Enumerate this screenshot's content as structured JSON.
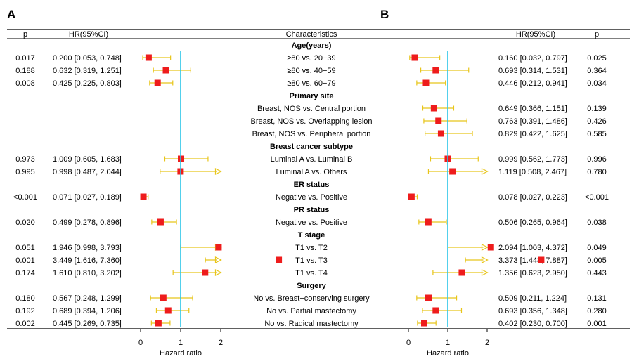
{
  "panels": {
    "a": "A",
    "b": "B"
  },
  "header": {
    "p": "p",
    "hr": "HR(95%CI)",
    "characteristics": "Characteristics"
  },
  "axis": {
    "ticks": [
      0,
      1,
      2
    ],
    "label": "Hazard ratio",
    "xlim": [
      0,
      2
    ]
  },
  "colors": {
    "marker": "#ee1c1c",
    "ci": "#e8c51a",
    "reference": "#27c4e8"
  },
  "chart_data": [
    {
      "type": "forest",
      "panel": "A",
      "xlabel": "Hazard ratio",
      "xlim": [
        0,
        2
      ],
      "reference_line": 1,
      "groups": [
        {
          "title": "Age(years)",
          "rows": [
            {
              "label": "≥80 vs. 20−39",
              "hr": 0.2,
              "lo": 0.053,
              "hi": 0.748,
              "text": "0.200 [0.053, 0.748]",
              "p": "0.017"
            },
            {
              "label": "≥80 vs. 40−59",
              "hr": 0.632,
              "lo": 0.319,
              "hi": 1.251,
              "text": "0.632 [0.319, 1.251]",
              "p": "0.188"
            },
            {
              "label": "≥80 vs. 60−79",
              "hr": 0.425,
              "lo": 0.225,
              "hi": 0.803,
              "text": "0.425 [0.225, 0.803]",
              "p": "0.008"
            }
          ]
        },
        {
          "title": "Primary site",
          "rows": [
            {
              "label": "Breast, NOS vs. Central portion"
            },
            {
              "label": "Breast, NOS vs. Overlapping lesion"
            },
            {
              "label": "Breast, NOS vs. Peripheral portion"
            }
          ]
        },
        {
          "title": "Breast cancer subtype",
          "rows": [
            {
              "label": "Luminal A vs. Luminal B",
              "hr": 1.009,
              "lo": 0.605,
              "hi": 1.683,
              "text": "1.009 [0.605, 1.683]",
              "p": "0.973"
            },
            {
              "label": "Luminal A vs. Others",
              "hr": 0.998,
              "lo": 0.487,
              "hi": 2.044,
              "text": "0.998 [0.487, 2.044]",
              "p": "0.995"
            }
          ]
        },
        {
          "title": "ER status",
          "rows": [
            {
              "label": "Negative vs. Positive",
              "hr": 0.071,
              "lo": 0.027,
              "hi": 0.189,
              "text": "0.071 [0.027, 0.189]",
              "p": "<0.001"
            }
          ]
        },
        {
          "title": "PR status",
          "rows": [
            {
              "label": "Negative vs. Positive",
              "hr": 0.499,
              "lo": 0.278,
              "hi": 0.896,
              "text": "0.499 [0.278, 0.896]",
              "p": "0.020"
            }
          ]
        },
        {
          "title": "T stage",
          "rows": [
            {
              "label": "T1 vs. T2",
              "hr": 1.946,
              "lo": 0.998,
              "hi": 3.793,
              "text": "1.946 [0.998, 3.793]",
              "p": "0.051"
            },
            {
              "label": "T1 vs. T3",
              "hr": 3.449,
              "lo": 1.616,
              "hi": 7.36,
              "text": "3.449 [1.616, 7.360]",
              "p": "0.001"
            },
            {
              "label": "T1 vs. T4",
              "hr": 1.61,
              "lo": 0.81,
              "hi": 3.202,
              "text": "1.610 [0.810, 3.202]",
              "p": "0.174"
            }
          ]
        },
        {
          "title": "Surgery",
          "rows": [
            {
              "label": "No vs. Breast−conserving surgery",
              "hr": 0.567,
              "lo": 0.248,
              "hi": 1.299,
              "text": "0.567 [0.248, 1.299]",
              "p": "0.180"
            },
            {
              "label": "No vs. Partial mastectomy",
              "hr": 0.689,
              "lo": 0.394,
              "hi": 1.206,
              "text": "0.689 [0.394, 1.206]",
              "p": "0.192"
            },
            {
              "label": "No vs. Radical mastectomy",
              "hr": 0.445,
              "lo": 0.269,
              "hi": 0.735,
              "text": "0.445 [0.269, 0.735]",
              "p": "0.002"
            }
          ]
        }
      ]
    },
    {
      "type": "forest",
      "panel": "B",
      "xlabel": "Hazard ratio",
      "xlim": [
        0,
        2
      ],
      "reference_line": 1,
      "groups": [
        {
          "title": "Age(years)",
          "rows": [
            {
              "hr": 0.16,
              "lo": 0.032,
              "hi": 0.797,
              "text": "0.160 [0.032, 0.797]",
              "p": "0.025"
            },
            {
              "hr": 0.693,
              "lo": 0.314,
              "hi": 1.531,
              "text": "0.693 [0.314, 1.531]",
              "p": "0.364"
            },
            {
              "hr": 0.446,
              "lo": 0.212,
              "hi": 0.941,
              "text": "0.446 [0.212, 0.941]",
              "p": "0.034"
            }
          ]
        },
        {
          "title": "Primary site",
          "rows": [
            {
              "hr": 0.649,
              "lo": 0.366,
              "hi": 1.151,
              "text": "0.649 [0.366, 1.151]",
              "p": "0.139"
            },
            {
              "hr": 0.763,
              "lo": 0.391,
              "hi": 1.486,
              "text": "0.763 [0.391, 1.486]",
              "p": "0.426"
            },
            {
              "hr": 0.829,
              "lo": 0.422,
              "hi": 1.625,
              "text": "0.829 [0.422, 1.625]",
              "p": "0.585"
            }
          ]
        },
        {
          "title": "Breast cancer subtype",
          "rows": [
            {
              "hr": 0.999,
              "lo": 0.562,
              "hi": 1.773,
              "text": "0.999 [0.562, 1.773]",
              "p": "0.996"
            },
            {
              "hr": 1.119,
              "lo": 0.508,
              "hi": 2.467,
              "text": "1.119 [0.508, 2.467]",
              "p": "0.780"
            }
          ]
        },
        {
          "title": "ER status",
          "rows": [
            {
              "hr": 0.078,
              "lo": 0.027,
              "hi": 0.223,
              "text": "0.078 [0.027, 0.223]",
              "p": "<0.001"
            }
          ]
        },
        {
          "title": "PR status",
          "rows": [
            {
              "hr": 0.506,
              "lo": 0.265,
              "hi": 0.964,
              "text": "0.506 [0.265, 0.964]",
              "p": "0.038"
            }
          ]
        },
        {
          "title": "T stage",
          "rows": [
            {
              "hr": 2.094,
              "lo": 1.003,
              "hi": 4.372,
              "text": "2.094 [1.003, 4.372]",
              "p": "0.049"
            },
            {
              "hr": 3.373,
              "lo": 1.448,
              "hi": 7.887,
              "text": "3.373 [1.448, 7.887]",
              "p": "0.005"
            },
            {
              "hr": 1.356,
              "lo": 0.623,
              "hi": 2.95,
              "text": "1.356 [0.623, 2.950]",
              "p": "0.443"
            }
          ]
        },
        {
          "title": "Surgery",
          "rows": [
            {
              "hr": 0.509,
              "lo": 0.211,
              "hi": 1.224,
              "text": "0.509 [0.211, 1.224]",
              "p": "0.131"
            },
            {
              "hr": 0.693,
              "lo": 0.356,
              "hi": 1.348,
              "text": "0.693 [0.356, 1.348]",
              "p": "0.280"
            },
            {
              "hr": 0.402,
              "lo": 0.23,
              "hi": 0.7,
              "text": "0.402 [0.230, 0.700]",
              "p": "0.001"
            }
          ]
        }
      ]
    }
  ]
}
